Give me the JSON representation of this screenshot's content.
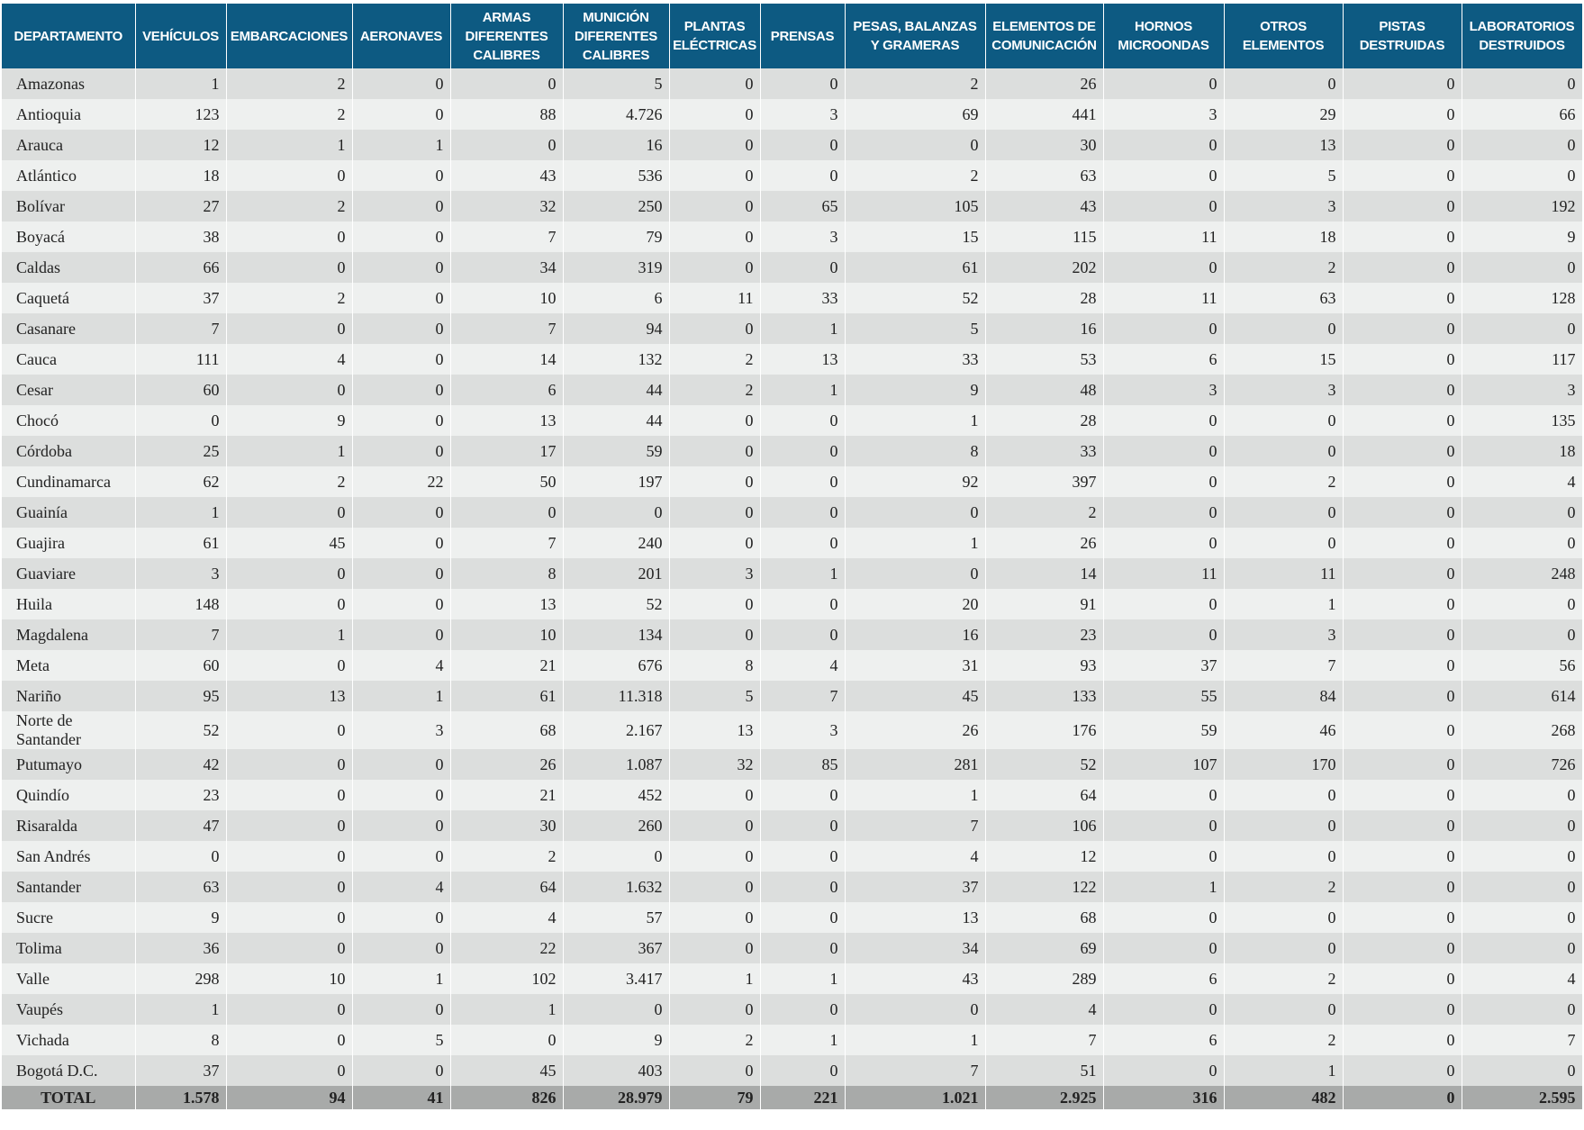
{
  "table": {
    "headers": [
      "DEPARTAMENTO",
      "VEHÍCULOS",
      "EMBARCACIONES",
      "AERONAVES",
      "ARMAS DIFERENTES CALIBRES",
      "MUNICIÓN DIFERENTES CALIBRES",
      "PLANTAS ELÉCTRICAS",
      "PRENSAS",
      "PESAS, BALANZAS Y GRAMERAS",
      "ELEMENTOS DE COMUNICACIÓN",
      "HORNOS MICROONDAS",
      "OTROS ELEMENTOS",
      "PISTAS DESTRUIDAS",
      "LABORATORIOS DESTRUIDOS"
    ],
    "rows": [
      [
        "Amazonas",
        "1",
        "2",
        "0",
        "0",
        "5",
        "0",
        "0",
        "2",
        "26",
        "0",
        "0",
        "0",
        "0"
      ],
      [
        "Antioquia",
        "123",
        "2",
        "0",
        "88",
        "4.726",
        "0",
        "3",
        "69",
        "441",
        "3",
        "29",
        "0",
        "66"
      ],
      [
        "Arauca",
        "12",
        "1",
        "1",
        "0",
        "16",
        "0",
        "0",
        "0",
        "30",
        "0",
        "13",
        "0",
        "0"
      ],
      [
        "Atlántico",
        "18",
        "0",
        "0",
        "43",
        "536",
        "0",
        "0",
        "2",
        "63",
        "0",
        "5",
        "0",
        "0"
      ],
      [
        "Bolívar",
        "27",
        "2",
        "0",
        "32",
        "250",
        "0",
        "65",
        "105",
        "43",
        "0",
        "3",
        "0",
        "192"
      ],
      [
        "Boyacá",
        "38",
        "0",
        "0",
        "7",
        "79",
        "0",
        "3",
        "15",
        "115",
        "11",
        "18",
        "0",
        "9"
      ],
      [
        "Caldas",
        "66",
        "0",
        "0",
        "34",
        "319",
        "0",
        "0",
        "61",
        "202",
        "0",
        "2",
        "0",
        "0"
      ],
      [
        "Caquetá",
        "37",
        "2",
        "0",
        "10",
        "6",
        "11",
        "33",
        "52",
        "28",
        "11",
        "63",
        "0",
        "128"
      ],
      [
        "Casanare",
        "7",
        "0",
        "0",
        "7",
        "94",
        "0",
        "1",
        "5",
        "16",
        "0",
        "0",
        "0",
        "0"
      ],
      [
        "Cauca",
        "111",
        "4",
        "0",
        "14",
        "132",
        "2",
        "13",
        "33",
        "53",
        "6",
        "15",
        "0",
        "117"
      ],
      [
        "Cesar",
        "60",
        "0",
        "0",
        "6",
        "44",
        "2",
        "1",
        "9",
        "48",
        "3",
        "3",
        "0",
        "3"
      ],
      [
        "Chocó",
        "0",
        "9",
        "0",
        "13",
        "44",
        "0",
        "0",
        "1",
        "28",
        "0",
        "0",
        "0",
        "135"
      ],
      [
        "Córdoba",
        "25",
        "1",
        "0",
        "17",
        "59",
        "0",
        "0",
        "8",
        "33",
        "0",
        "0",
        "0",
        "18"
      ],
      [
        "Cundinamarca",
        "62",
        "2",
        "22",
        "50",
        "197",
        "0",
        "0",
        "92",
        "397",
        "0",
        "2",
        "0",
        "4"
      ],
      [
        "Guainía",
        "1",
        "0",
        "0",
        "0",
        "0",
        "0",
        "0",
        "0",
        "2",
        "0",
        "0",
        "0",
        "0"
      ],
      [
        "Guajira",
        "61",
        "45",
        "0",
        "7",
        "240",
        "0",
        "0",
        "1",
        "26",
        "0",
        "0",
        "0",
        "0"
      ],
      [
        "Guaviare",
        "3",
        "0",
        "0",
        "8",
        "201",
        "3",
        "1",
        "0",
        "14",
        "11",
        "11",
        "0",
        "248"
      ],
      [
        "Huila",
        "148",
        "0",
        "0",
        "13",
        "52",
        "0",
        "0",
        "20",
        "91",
        "0",
        "1",
        "0",
        "0"
      ],
      [
        "Magdalena",
        "7",
        "1",
        "0",
        "10",
        "134",
        "0",
        "0",
        "16",
        "23",
        "0",
        "3",
        "0",
        "0"
      ],
      [
        "Meta",
        "60",
        "0",
        "4",
        "21",
        "676",
        "8",
        "4",
        "31",
        "93",
        "37",
        "7",
        "0",
        "56"
      ],
      [
        "Nariño",
        "95",
        "13",
        "1",
        "61",
        "11.318",
        "5",
        "7",
        "45",
        "133",
        "55",
        "84",
        "0",
        "614"
      ],
      [
        "Norte de Santander",
        "52",
        "0",
        "3",
        "68",
        "2.167",
        "13",
        "3",
        "26",
        "176",
        "59",
        "46",
        "0",
        "268"
      ],
      [
        "Putumayo",
        "42",
        "0",
        "0",
        "26",
        "1.087",
        "32",
        "85",
        "281",
        "52",
        "107",
        "170",
        "0",
        "726"
      ],
      [
        "Quindío",
        "23",
        "0",
        "0",
        "21",
        "452",
        "0",
        "0",
        "1",
        "64",
        "0",
        "0",
        "0",
        "0"
      ],
      [
        "Risaralda",
        "47",
        "0",
        "0",
        "30",
        "260",
        "0",
        "0",
        "7",
        "106",
        "0",
        "0",
        "0",
        "0"
      ],
      [
        "San Andrés",
        "0",
        "0",
        "0",
        "2",
        "0",
        "0",
        "0",
        "4",
        "12",
        "0",
        "0",
        "0",
        "0"
      ],
      [
        "Santander",
        "63",
        "0",
        "4",
        "64",
        "1.632",
        "0",
        "0",
        "37",
        "122",
        "1",
        "2",
        "0",
        "0"
      ],
      [
        "Sucre",
        "9",
        "0",
        "0",
        "4",
        "57",
        "0",
        "0",
        "13",
        "68",
        "0",
        "0",
        "0",
        "0"
      ],
      [
        "Tolima",
        "36",
        "0",
        "0",
        "22",
        "367",
        "0",
        "0",
        "34",
        "69",
        "0",
        "0",
        "0",
        "0"
      ],
      [
        "Valle",
        "298",
        "10",
        "1",
        "102",
        "3.417",
        "1",
        "1",
        "43",
        "289",
        "6",
        "2",
        "0",
        "4"
      ],
      [
        "Vaupés",
        "1",
        "0",
        "0",
        "1",
        "0",
        "0",
        "0",
        "0",
        "4",
        "0",
        "0",
        "0",
        "0"
      ],
      [
        "Vichada",
        "8",
        "0",
        "5",
        "0",
        "9",
        "2",
        "1",
        "1",
        "7",
        "6",
        "2",
        "0",
        "7"
      ],
      [
        "Bogotá D.C.",
        "37",
        "0",
        "0",
        "45",
        "403",
        "0",
        "0",
        "7",
        "51",
        "0",
        "1",
        "0",
        "0"
      ]
    ],
    "total": [
      "TOTAL",
      "1.578",
      "94",
      "41",
      "826",
      "28.979",
      "79",
      "221",
      "1.021",
      "2.925",
      "316",
      "482",
      "0",
      "2.595"
    ]
  }
}
